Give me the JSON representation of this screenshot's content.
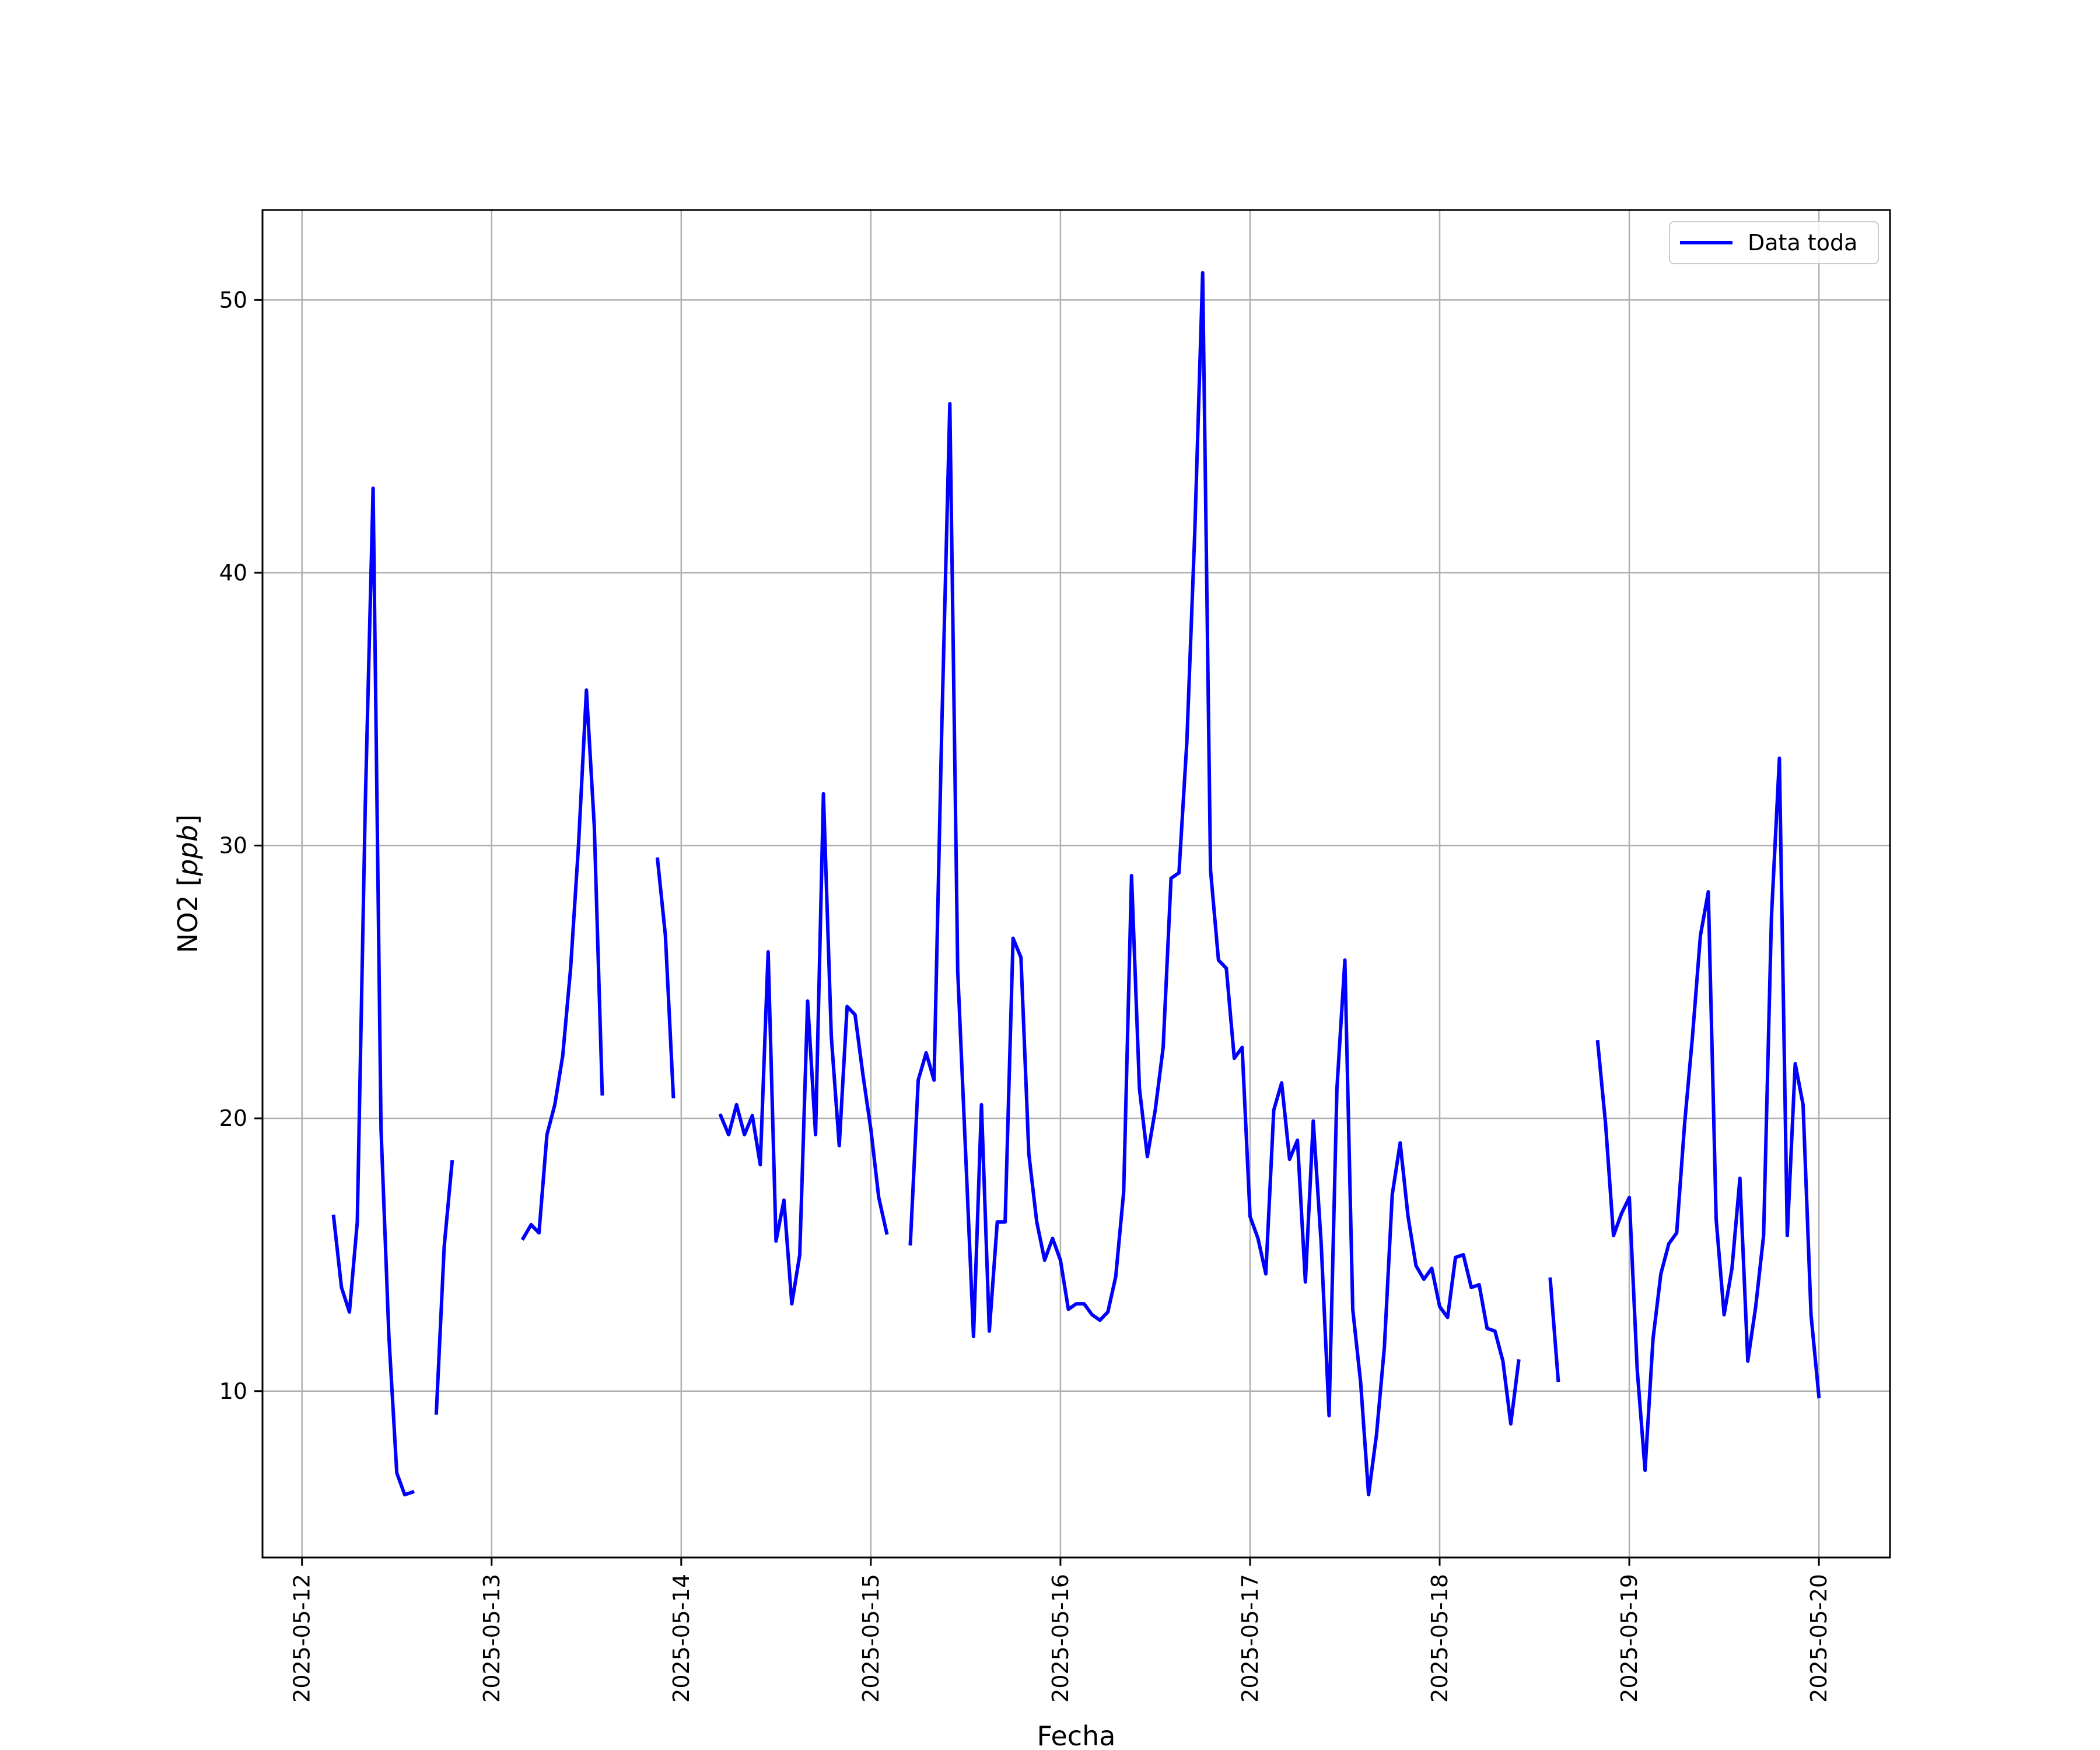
{
  "chart_data": {
    "type": "line",
    "title": "",
    "xlabel": "Fecha",
    "ylabel": "NO2 [ppb]",
    "ylabel_parts": {
      "name": "NO2 [",
      "unit": "ppb",
      "close": "]"
    },
    "xlim": [
      "2025-05-11T19:00",
      "2025-05-20T09:00"
    ],
    "ylim": [
      3.9,
      53.3
    ],
    "x_ticks": [
      "2025-05-12",
      "2025-05-13",
      "2025-05-14",
      "2025-05-15",
      "2025-05-16",
      "2025-05-17",
      "2025-05-18",
      "2025-05-19",
      "2025-05-20"
    ],
    "y_ticks": [
      10,
      20,
      30,
      40,
      50
    ],
    "grid": true,
    "legend": {
      "position": "upper right",
      "entries": [
        "Data toda"
      ]
    },
    "colors": {
      "line": "#0000ff",
      "grid": "#b0b0b0",
      "axes": "#000000"
    },
    "series": [
      {
        "name": "Data toda",
        "segments": [
          [
            [
              "2025-05-12T04:00",
              16.4
            ],
            [
              "2025-05-12T05:00",
              13.8
            ],
            [
              "2025-05-12T06:00",
              12.9
            ],
            [
              "2025-05-12T07:00",
              16.2
            ],
            [
              "2025-05-12T08:00",
              31.4
            ],
            [
              "2025-05-12T09:00",
              43.1
            ],
            [
              "2025-05-12T10:00",
              19.6
            ],
            [
              "2025-05-12T11:00",
              12.0
            ],
            [
              "2025-05-12T12:00",
              7.0
            ],
            [
              "2025-05-12T13:00",
              6.2
            ],
            [
              "2025-05-12T14:00",
              6.3
            ]
          ],
          [
            [
              "2025-05-12T17:00",
              9.2
            ],
            [
              "2025-05-12T18:00",
              15.3
            ],
            [
              "2025-05-12T19:00",
              18.4
            ]
          ],
          [
            [
              "2025-05-13T04:00",
              15.6
            ],
            [
              "2025-05-13T05:00",
              16.1
            ],
            [
              "2025-05-13T06:00",
              15.8
            ],
            [
              "2025-05-13T07:00",
              19.4
            ],
            [
              "2025-05-13T08:00",
              20.5
            ],
            [
              "2025-05-13T09:00",
              22.3
            ],
            [
              "2025-05-13T10:00",
              25.5
            ],
            [
              "2025-05-13T11:00",
              30.0
            ],
            [
              "2025-05-13T12:00",
              35.7
            ],
            [
              "2025-05-13T13:00",
              30.7
            ],
            [
              "2025-05-13T14:00",
              20.9
            ]
          ],
          [
            [
              "2025-05-13T21:00",
              29.5
            ],
            [
              "2025-05-13T22:00",
              26.7
            ],
            [
              "2025-05-13T23:00",
              20.8
            ]
          ],
          [
            [
              "2025-05-14T05:00",
              20.1
            ],
            [
              "2025-05-14T06:00",
              19.4
            ],
            [
              "2025-05-14T07:00",
              20.5
            ],
            [
              "2025-05-14T08:00",
              19.4
            ],
            [
              "2025-05-14T09:00",
              20.1
            ],
            [
              "2025-05-14T10:00",
              18.3
            ],
            [
              "2025-05-14T11:00",
              26.1
            ],
            [
              "2025-05-14T12:00",
              15.5
            ],
            [
              "2025-05-14T13:00",
              17.0
            ],
            [
              "2025-05-14T14:00",
              13.2
            ],
            [
              "2025-05-14T15:00",
              15.0
            ],
            [
              "2025-05-14T16:00",
              24.3
            ],
            [
              "2025-05-14T17:00",
              19.4
            ],
            [
              "2025-05-14T18:00",
              31.9
            ],
            [
              "2025-05-14T19:00",
              23.0
            ],
            [
              "2025-05-14T20:00",
              19.0
            ],
            [
              "2025-05-14T21:00",
              24.1
            ],
            [
              "2025-05-14T22:00",
              23.8
            ],
            [
              "2025-05-14T23:00",
              21.6
            ],
            [
              "2025-05-15T00:00",
              19.6
            ],
            [
              "2025-05-15T01:00",
              17.1
            ],
            [
              "2025-05-15T02:00",
              15.8
            ]
          ],
          [
            [
              "2025-05-15T05:00",
              15.4
            ],
            [
              "2025-05-15T06:00",
              21.4
            ],
            [
              "2025-05-15T07:00",
              22.4
            ],
            [
              "2025-05-15T08:00",
              21.4
            ],
            [
              "2025-05-15T09:00",
              34.6
            ],
            [
              "2025-05-15T10:00",
              46.2
            ],
            [
              "2025-05-15T11:00",
              25.4
            ],
            [
              "2025-05-15T12:00",
              18.7
            ],
            [
              "2025-05-15T13:00",
              12.0
            ],
            [
              "2025-05-15T14:00",
              20.5
            ],
            [
              "2025-05-15T15:00",
              12.2
            ],
            [
              "2025-05-15T16:00",
              16.2
            ],
            [
              "2025-05-15T17:00",
              16.2
            ],
            [
              "2025-05-15T18:00",
              26.6
            ],
            [
              "2025-05-15T19:00",
              25.9
            ],
            [
              "2025-05-15T20:00",
              18.7
            ],
            [
              "2025-05-15T21:00",
              16.2
            ],
            [
              "2025-05-15T22:00",
              14.8
            ],
            [
              "2025-05-15T23:00",
              15.6
            ],
            [
              "2025-05-16T00:00",
              14.8
            ],
            [
              "2025-05-16T01:00",
              13.0
            ],
            [
              "2025-05-16T02:00",
              13.2
            ],
            [
              "2025-05-16T03:00",
              13.2
            ],
            [
              "2025-05-16T04:00",
              12.8
            ],
            [
              "2025-05-16T05:00",
              12.6
            ],
            [
              "2025-05-16T06:00",
              12.9
            ],
            [
              "2025-05-16T07:00",
              14.2
            ],
            [
              "2025-05-16T08:00",
              17.3
            ],
            [
              "2025-05-16T09:00",
              28.9
            ],
            [
              "2025-05-16T10:00",
              21.1
            ],
            [
              "2025-05-16T11:00",
              18.6
            ],
            [
              "2025-05-16T12:00",
              20.3
            ],
            [
              "2025-05-16T13:00",
              22.6
            ],
            [
              "2025-05-16T14:00",
              28.8
            ],
            [
              "2025-05-16T15:00",
              29.0
            ],
            [
              "2025-05-16T16:00",
              33.8
            ],
            [
              "2025-05-16T17:00",
              41.5
            ],
            [
              "2025-05-16T18:00",
              51.0
            ],
            [
              "2025-05-16T19:00",
              29.1
            ],
            [
              "2025-05-16T20:00",
              25.8
            ],
            [
              "2025-05-16T21:00",
              25.5
            ],
            [
              "2025-05-16T22:00",
              22.2
            ],
            [
              "2025-05-16T23:00",
              22.6
            ],
            [
              "2025-05-17T00:00",
              16.4
            ],
            [
              "2025-05-17T01:00",
              15.6
            ],
            [
              "2025-05-17T02:00",
              14.3
            ],
            [
              "2025-05-17T03:00",
              20.3
            ],
            [
              "2025-05-17T04:00",
              21.3
            ],
            [
              "2025-05-17T05:00",
              18.5
            ],
            [
              "2025-05-17T06:00",
              19.2
            ],
            [
              "2025-05-17T07:00",
              14.0
            ],
            [
              "2025-05-17T08:00",
              19.9
            ],
            [
              "2025-05-17T09:00",
              15.4
            ],
            [
              "2025-05-17T10:00",
              9.1
            ],
            [
              "2025-05-17T11:00",
              21.1
            ],
            [
              "2025-05-17T12:00",
              25.8
            ],
            [
              "2025-05-17T13:00",
              13.0
            ],
            [
              "2025-05-17T14:00",
              10.3
            ],
            [
              "2025-05-17T15:00",
              6.2
            ],
            [
              "2025-05-17T16:00",
              8.4
            ],
            [
              "2025-05-17T17:00",
              11.6
            ],
            [
              "2025-05-17T18:00",
              17.2
            ],
            [
              "2025-05-17T19:00",
              19.1
            ],
            [
              "2025-05-17T20:00",
              16.4
            ],
            [
              "2025-05-17T21:00",
              14.6
            ],
            [
              "2025-05-17T22:00",
              14.1
            ],
            [
              "2025-05-17T23:00",
              14.5
            ],
            [
              "2025-05-18T00:00",
              13.1
            ],
            [
              "2025-05-18T01:00",
              12.7
            ],
            [
              "2025-05-18T02:00",
              14.9
            ],
            [
              "2025-05-18T03:00",
              15.0
            ],
            [
              "2025-05-18T04:00",
              13.8
            ],
            [
              "2025-05-18T05:00",
              13.9
            ],
            [
              "2025-05-18T06:00",
              12.3
            ],
            [
              "2025-05-18T07:00",
              12.2
            ],
            [
              "2025-05-18T08:00",
              11.1
            ],
            [
              "2025-05-18T09:00",
              8.8
            ],
            [
              "2025-05-18T10:00",
              11.1
            ]
          ],
          [
            [
              "2025-05-18T14:00",
              14.1
            ],
            [
              "2025-05-18T15:00",
              10.4
            ]
          ],
          [
            [
              "2025-05-18T20:00",
              22.8
            ],
            [
              "2025-05-18T21:00",
              19.8
            ],
            [
              "2025-05-18T22:00",
              15.7
            ],
            [
              "2025-05-18T23:00",
              16.5
            ],
            [
              "2025-05-19T00:00",
              17.1
            ],
            [
              "2025-05-19T01:00",
              10.8
            ],
            [
              "2025-05-19T02:00",
              7.1
            ],
            [
              "2025-05-19T03:00",
              11.9
            ],
            [
              "2025-05-19T04:00",
              14.3
            ],
            [
              "2025-05-19T05:00",
              15.4
            ],
            [
              "2025-05-19T06:00",
              15.8
            ],
            [
              "2025-05-19T07:00",
              19.8
            ],
            [
              "2025-05-19T08:00",
              23.0
            ],
            [
              "2025-05-19T09:00",
              26.7
            ],
            [
              "2025-05-19T10:00",
              28.3
            ],
            [
              "2025-05-19T11:00",
              16.3
            ],
            [
              "2025-05-19T12:00",
              12.8
            ],
            [
              "2025-05-19T13:00",
              14.5
            ],
            [
              "2025-05-19T14:00",
              17.8
            ],
            [
              "2025-05-19T15:00",
              11.1
            ],
            [
              "2025-05-19T16:00",
              13.1
            ],
            [
              "2025-05-19T17:00",
              15.7
            ],
            [
              "2025-05-19T18:00",
              27.4
            ],
            [
              "2025-05-19T19:00",
              33.2
            ],
            [
              "2025-05-19T20:00",
              15.7
            ],
            [
              "2025-05-19T21:00",
              22.0
            ],
            [
              "2025-05-19T22:00",
              20.5
            ],
            [
              "2025-05-19T23:00",
              12.8
            ],
            [
              "2025-05-20T00:00",
              9.8
            ]
          ]
        ]
      }
    ]
  }
}
